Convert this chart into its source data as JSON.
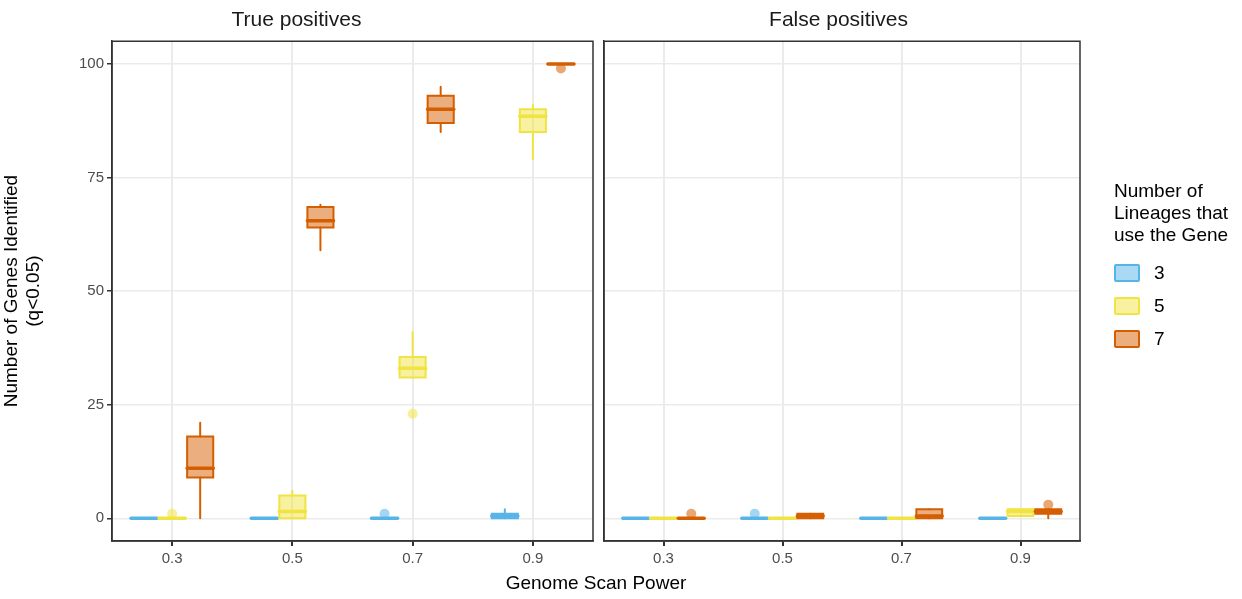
{
  "chart_data": [
    {
      "type": "box",
      "title": "True positives",
      "xlabel": "Genome Scan Power",
      "ylabel": "Number of Genes Identified\n(q<0.05)",
      "categories": [
        "0.3",
        "0.5",
        "0.7",
        "0.9"
      ],
      "ylim": [
        -5,
        105
      ],
      "yticks": [
        0,
        25,
        50,
        75,
        100
      ],
      "grid": true,
      "legend": "right",
      "legend_title": "Number of Lineages that use the Gene",
      "series": [
        {
          "name": "3",
          "color": "#56b4e9",
          "boxes": [
            {
              "low": 0,
              "q1": 0,
              "median": 0,
              "q3": 0,
              "high": 0
            },
            {
              "low": 0,
              "q1": 0,
              "median": 0,
              "q3": 0,
              "high": 0
            },
            {
              "low": 0,
              "q1": 0,
              "median": 0,
              "q3": 0,
              "high": 0,
              "outliers": [
                1
              ]
            },
            {
              "low": 0,
              "q1": 0,
              "median": 0.5,
              "q3": 1,
              "high": 2
            }
          ]
        },
        {
          "name": "5",
          "color": "#f0e442",
          "boxes": [
            {
              "low": 0,
              "q1": 0,
              "median": 0,
              "q3": 0,
              "high": 0,
              "outliers": [
                1
              ]
            },
            {
              "low": 0,
              "q1": 0,
              "median": 1.5,
              "q3": 5,
              "high": 6
            },
            {
              "low": 31,
              "q1": 31,
              "median": 33,
              "q3": 35.5,
              "high": 41,
              "outliers": [
                23
              ]
            },
            {
              "low": 79,
              "q1": 85,
              "median": 88.5,
              "q3": 90,
              "high": 91
            }
          ]
        },
        {
          "name": "7",
          "color": "#d55e00",
          "boxes": [
            {
              "low": 0,
              "q1": 9,
              "median": 11,
              "q3": 18,
              "high": 21
            },
            {
              "low": 59,
              "q1": 64,
              "median": 65.5,
              "q3": 68.5,
              "high": 69
            },
            {
              "low": 85,
              "q1": 87,
              "median": 90,
              "q3": 93,
              "high": 95
            },
            {
              "low": 100,
              "q1": 100,
              "median": 100,
              "q3": 100,
              "high": 100,
              "outliers": [
                99
              ]
            }
          ]
        }
      ]
    },
    {
      "type": "box",
      "title": "False positives",
      "categories": [
        "0.3",
        "0.5",
        "0.7",
        "0.9"
      ],
      "ylim": [
        -5,
        105
      ],
      "yticks": [
        0,
        25,
        50,
        75,
        100
      ],
      "grid": true,
      "tick_labels": "x",
      "series": [
        {
          "color": "#56b4e9",
          "boxes": [
            {
              "low": 0,
              "q1": 0,
              "median": 0,
              "q3": 0,
              "high": 0
            },
            {
              "low": 0,
              "q1": 0,
              "median": 0,
              "q3": 0,
              "high": 0,
              "outliers": [
                1
              ]
            },
            {
              "low": 0,
              "q1": 0,
              "median": 0,
              "q3": 0,
              "high": 0
            },
            {
              "low": 0,
              "q1": 0,
              "median": 0,
              "q3": 0,
              "high": 0
            }
          ]
        },
        {
          "color": "#f0e442",
          "boxes": [
            {
              "low": 0,
              "q1": 0,
              "median": 0,
              "q3": 0,
              "high": 0
            },
            {
              "low": 0,
              "q1": 0,
              "median": 0,
              "q3": 0,
              "high": 0
            },
            {
              "low": 0,
              "q1": 0,
              "median": 0,
              "q3": 0,
              "high": 0
            },
            {
              "low": 0.5,
              "q1": 0.5,
              "median": 1.5,
              "q3": 2,
              "high": 2
            }
          ]
        },
        {
          "color": "#d55e00",
          "boxes": [
            {
              "low": 0,
              "q1": 0,
              "median": 0,
              "q3": 0,
              "high": 0,
              "outliers": [
                1
              ]
            },
            {
              "low": 0,
              "q1": 0,
              "median": 0.5,
              "q3": 1,
              "high": 1
            },
            {
              "low": 0,
              "q1": 0,
              "median": 0.5,
              "q3": 2,
              "high": 2
            },
            {
              "low": 0,
              "q1": 1,
              "median": 1.5,
              "q3": 2,
              "high": 2,
              "outliers": [
                3
              ]
            }
          ]
        }
      ]
    }
  ]
}
